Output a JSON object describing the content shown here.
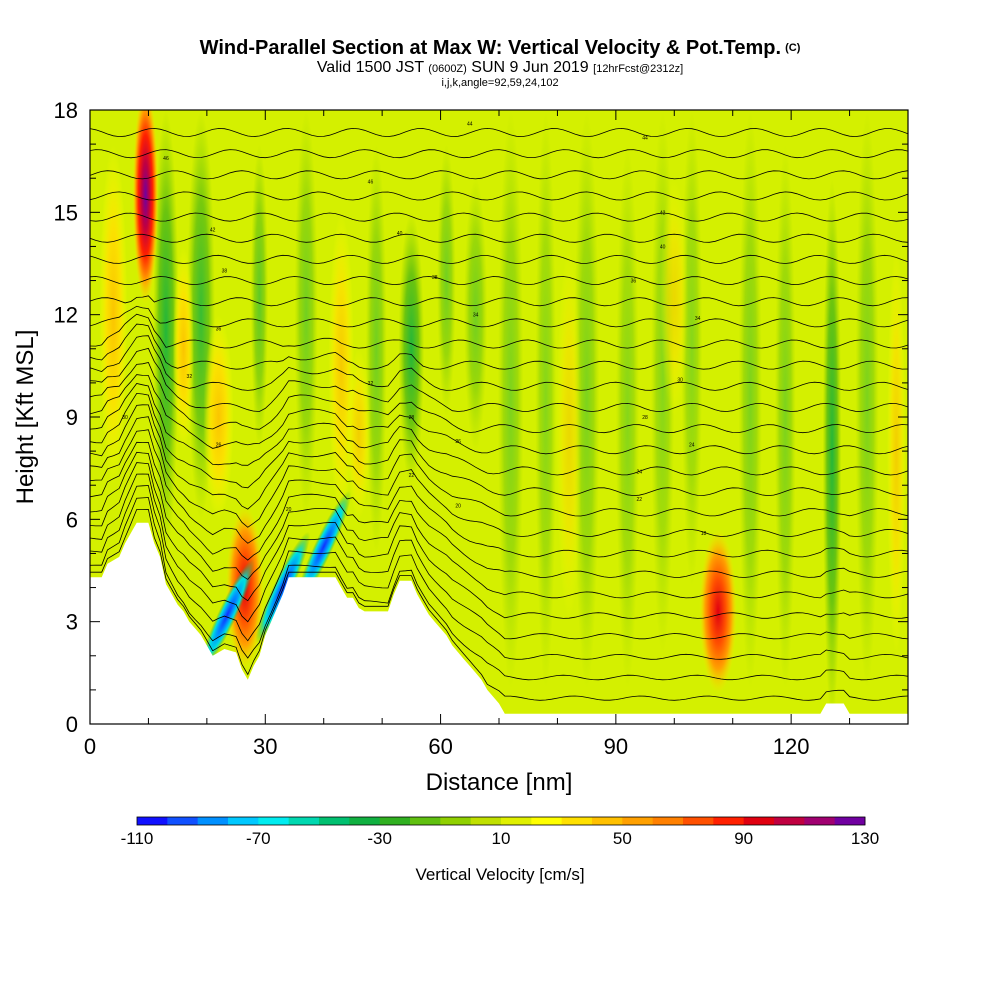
{
  "title": {
    "main": "Wind-Parallel Section at Max W: Vertical Velocity & Pot.Temp.",
    "copyright": "(C)",
    "valid_prefix": "Valid 1500 JST",
    "valid_utc": "(0600Z)",
    "valid_date": "SUN 9 Jun 2019",
    "forecast": "[12hrFcst@2312z]",
    "indices": "i,j,k,angle=92,59,24,102"
  },
  "chart_data": {
    "type": "heatmap",
    "xlabel": "Distance [nm]",
    "ylabel": "Height [Kft MSL]",
    "xlim": [
      0,
      140
    ],
    "ylim": [
      0,
      18
    ],
    "x_ticks": [
      "0",
      "30",
      "60",
      "90",
      "120"
    ],
    "x_tick_values": [
      0,
      30,
      60,
      90,
      120
    ],
    "y_ticks": [
      "0",
      "3",
      "6",
      "9",
      "12",
      "15",
      "18"
    ],
    "y_tick_values": [
      0,
      3,
      6,
      9,
      12,
      15,
      18
    ],
    "background_color": "#d4f000",
    "terrain": [
      [
        0,
        4.3
      ],
      [
        2,
        4.3
      ],
      [
        3,
        4.7
      ],
      [
        5,
        4.9
      ],
      [
        6,
        5.3
      ],
      [
        7,
        5.6
      ],
      [
        8,
        5.9
      ],
      [
        10,
        5.9
      ],
      [
        11,
        5.3
      ],
      [
        12,
        4.9
      ],
      [
        13,
        4.1
      ],
      [
        14,
        3.8
      ],
      [
        15,
        3.5
      ],
      [
        16,
        3.3
      ],
      [
        17,
        3.0
      ],
      [
        18,
        2.8
      ],
      [
        19,
        2.6
      ],
      [
        20,
        2.3
      ],
      [
        21,
        2.0
      ],
      [
        23,
        2.2
      ],
      [
        25,
        2.1
      ],
      [
        26,
        1.6
      ],
      [
        27,
        1.3
      ],
      [
        28,
        1.7
      ],
      [
        29,
        2.0
      ],
      [
        30,
        2.6
      ],
      [
        31,
        3.0
      ],
      [
        32,
        3.4
      ],
      [
        33,
        3.8
      ],
      [
        34,
        4.3
      ],
      [
        42,
        4.3
      ],
      [
        43,
        4.0
      ],
      [
        44,
        3.7
      ],
      [
        45,
        3.7
      ],
      [
        46,
        3.4
      ],
      [
        47,
        3.3
      ],
      [
        51,
        3.3
      ],
      [
        52,
        3.8
      ],
      [
        53,
        4.2
      ],
      [
        55,
        4.2
      ],
      [
        56,
        3.8
      ],
      [
        57,
        3.5
      ],
      [
        58,
        3.2
      ],
      [
        59,
        3.0
      ],
      [
        60,
        2.8
      ],
      [
        61,
        2.6
      ],
      [
        62,
        2.3
      ],
      [
        63,
        2.1
      ],
      [
        64,
        1.9
      ],
      [
        65,
        1.7
      ],
      [
        66,
        1.5
      ],
      [
        67,
        1.3
      ],
      [
        68,
        1.0
      ],
      [
        69,
        0.8
      ],
      [
        70,
        0.6
      ],
      [
        71,
        0.3
      ],
      [
        125,
        0.3
      ],
      [
        126,
        0.6
      ],
      [
        129,
        0.6
      ],
      [
        130,
        0.3
      ],
      [
        140,
        0.3
      ]
    ],
    "updraft_cores": [
      {
        "x": 9.5,
        "y": 15.5,
        "value": 130
      },
      {
        "x": 26.5,
        "y": 4.0,
        "value": 90
      },
      {
        "x": 107.5,
        "y": 3.3,
        "value": 90
      }
    ],
    "downdraft_cores": [
      {
        "x": 23.5,
        "y": 3.2,
        "value": -110
      },
      {
        "x": 33.0,
        "y": 4.0,
        "value": -90
      },
      {
        "x": 40.0,
        "y": 5.2,
        "value": -70
      }
    ],
    "contour_labels": [
      "44",
      "44",
      "46",
      "46",
      "42",
      "42",
      "40",
      "40",
      "38",
      "38",
      "36",
      "36",
      "34",
      "34",
      "32",
      "32",
      "30",
      "30",
      "28",
      "28",
      "26",
      "26",
      "24",
      "24",
      "22",
      "22",
      "20",
      "20",
      "18"
    ],
    "colorbar": {
      "title": "Vertical Velocity [cm/s]",
      "tick_labels": [
        "-110",
        "-70",
        "-30",
        "10",
        "50",
        "90",
        "130"
      ],
      "colors": [
        "#1010ff",
        "#1050ff",
        "#0090ff",
        "#00c8ff",
        "#00ecf0",
        "#00d8b0",
        "#00c070",
        "#10b040",
        "#30b020",
        "#60c010",
        "#90d000",
        "#c0e000",
        "#e0f000",
        "#ffff00",
        "#ffe000",
        "#ffc000",
        "#ffa000",
        "#ff8000",
        "#ff5000",
        "#ff2000",
        "#e00010",
        "#c00040",
        "#a00070",
        "#7000a0"
      ]
    }
  }
}
